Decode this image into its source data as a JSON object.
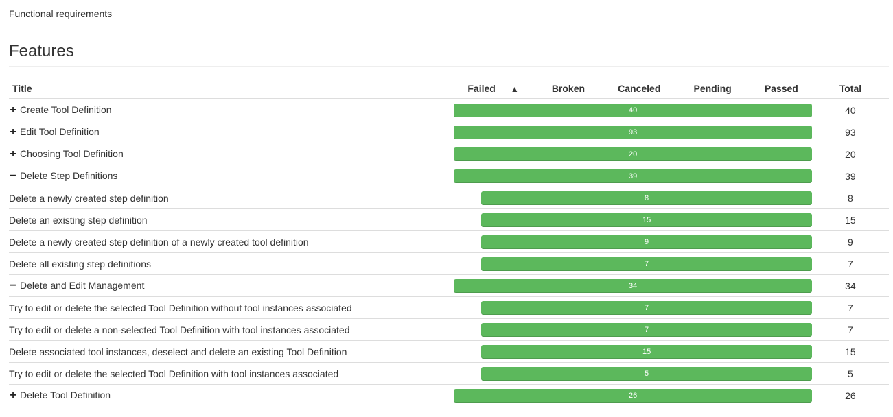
{
  "breadcrumb": "Functional requirements",
  "section_title": "Features",
  "columns": {
    "title": "Title",
    "failed": "Failed",
    "sort_indicator": "▲",
    "broken": "Broken",
    "canceled": "Canceled",
    "pending": "Pending",
    "passed": "Passed",
    "total": "Total"
  },
  "colors": {
    "passed": "#5cb85c"
  },
  "icons": {
    "expand": "plus-icon",
    "collapse": "minus-icon"
  },
  "rows": [
    {
      "type": "feature",
      "expanded": false,
      "toggle": "+",
      "title": "Create Tool Definition",
      "passed": "40",
      "total": "40"
    },
    {
      "type": "feature",
      "expanded": false,
      "toggle": "+",
      "title": "Edit Tool Definition",
      "passed": "93",
      "total": "93"
    },
    {
      "type": "feature",
      "expanded": false,
      "toggle": "+",
      "title": "Choosing Tool Definition",
      "passed": "20",
      "total": "20"
    },
    {
      "type": "feature",
      "expanded": true,
      "toggle": "−",
      "title": "Delete Step Definitions",
      "passed": "39",
      "total": "39"
    },
    {
      "type": "scenario",
      "title": "Delete a newly created step definition",
      "passed": "8",
      "total": "8"
    },
    {
      "type": "scenario",
      "title": "Delete an existing step definition",
      "passed": "15",
      "total": "15"
    },
    {
      "type": "scenario",
      "title": "Delete a newly created step definition of a newly created tool definition",
      "passed": "9",
      "total": "9"
    },
    {
      "type": "scenario",
      "title": "Delete all existing step definitions",
      "passed": "7",
      "total": "7"
    },
    {
      "type": "feature",
      "expanded": true,
      "toggle": "−",
      "title": "Delete and Edit Management",
      "passed": "34",
      "total": "34"
    },
    {
      "type": "scenario",
      "title": "Try to edit or delete the selected Tool Definition without tool instances associated",
      "passed": "7",
      "total": "7"
    },
    {
      "type": "scenario",
      "title": "Try to edit or delete a non-selected Tool Definition with tool instances associated",
      "passed": "7",
      "total": "7"
    },
    {
      "type": "scenario",
      "title": "Delete associated tool instances, deselect and delete an existing Tool Definition",
      "passed": "15",
      "total": "15"
    },
    {
      "type": "scenario",
      "title": "Try to edit or delete the selected Tool Definition with tool instances associated",
      "passed": "5",
      "total": "5"
    },
    {
      "type": "feature",
      "expanded": false,
      "toggle": "+",
      "title": "Delete Tool Definition",
      "passed": "26",
      "total": "26"
    }
  ]
}
